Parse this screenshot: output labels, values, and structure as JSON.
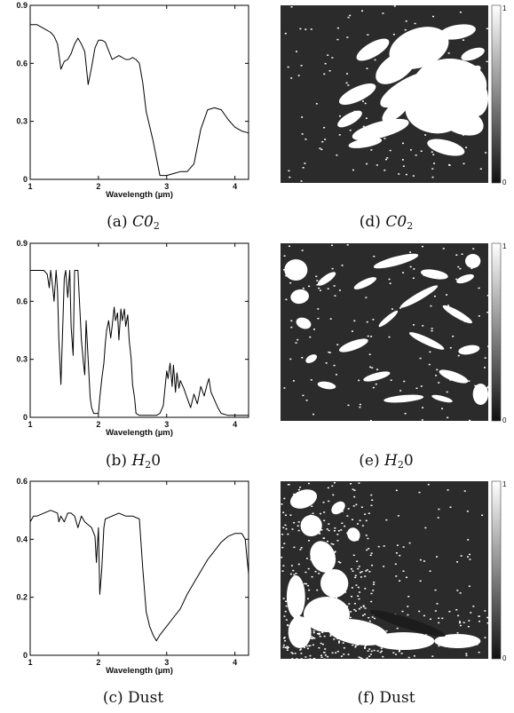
{
  "captions": [
    {
      "id": "a",
      "prefix": "(a) ",
      "symbol": "C0",
      "sub": "2",
      "text": ""
    },
    {
      "id": "b",
      "prefix": "(b) ",
      "symbol": "H",
      "sub": "2",
      "text": "0"
    },
    {
      "id": "c",
      "prefix": "(c) ",
      "symbol": "",
      "sub": "",
      "text": "Dust"
    },
    {
      "id": "d",
      "prefix": "(d) ",
      "symbol": "C0",
      "sub": "2",
      "text": ""
    },
    {
      "id": "e",
      "prefix": "(e) ",
      "symbol": "H",
      "sub": "2",
      "text": "0"
    },
    {
      "id": "f",
      "prefix": "(f) ",
      "symbol": "",
      "sub": "",
      "text": "Dust"
    }
  ],
  "chart_data": [
    {
      "id": "spectrum-co2",
      "type": "line",
      "xlabel": "Wavelength (µm)",
      "ylabel": "",
      "xlim": [
        1,
        4.2
      ],
      "ylim": [
        0,
        0.9
      ],
      "xticks": [
        1,
        2,
        3,
        4
      ],
      "yticks": [
        0,
        0.3,
        0.6,
        0.9
      ],
      "series": [
        {
          "x": [
            1.0,
            1.1,
            1.2,
            1.3,
            1.35,
            1.4,
            1.45,
            1.5,
            1.55,
            1.6,
            1.65,
            1.7,
            1.75,
            1.8,
            1.85,
            1.9,
            1.95,
            2.0,
            2.05,
            2.1,
            2.2,
            2.3,
            2.4,
            2.45,
            2.5,
            2.55,
            2.6,
            2.65,
            2.7,
            2.8,
            2.9,
            3.0,
            3.1,
            3.2,
            3.3,
            3.4,
            3.5,
            3.6,
            3.7,
            3.8,
            3.9,
            4.0,
            4.1,
            4.2
          ],
          "y": [
            0.8,
            0.8,
            0.78,
            0.76,
            0.74,
            0.7,
            0.57,
            0.61,
            0.62,
            0.65,
            0.7,
            0.73,
            0.7,
            0.66,
            0.49,
            0.58,
            0.68,
            0.72,
            0.72,
            0.71,
            0.62,
            0.64,
            0.62,
            0.62,
            0.63,
            0.62,
            0.6,
            0.5,
            0.35,
            0.2,
            0.02,
            0.02,
            0.03,
            0.04,
            0.04,
            0.08,
            0.26,
            0.36,
            0.37,
            0.36,
            0.31,
            0.27,
            0.25,
            0.24
          ]
        }
      ]
    },
    {
      "id": "spectrum-h2o",
      "type": "line",
      "xlabel": "Wavelength (µm)",
      "ylabel": "",
      "xlim": [
        1,
        4.2
      ],
      "ylim": [
        0,
        0.9
      ],
      "xticks": [
        1,
        2,
        3,
        4
      ],
      "yticks": [
        0,
        0.3,
        0.6,
        0.9
      ],
      "series": [
        {
          "x": [
            1.0,
            1.2,
            1.25,
            1.28,
            1.3,
            1.33,
            1.35,
            1.38,
            1.4,
            1.42,
            1.45,
            1.48,
            1.5,
            1.52,
            1.55,
            1.58,
            1.6,
            1.63,
            1.65,
            1.7,
            1.72,
            1.75,
            1.78,
            1.8,
            1.82,
            1.85,
            1.88,
            1.9,
            1.93,
            1.97,
            2.0,
            2.02,
            2.05,
            2.08,
            2.1,
            2.12,
            2.15,
            2.18,
            2.2,
            2.23,
            2.25,
            2.28,
            2.3,
            2.33,
            2.35,
            2.38,
            2.4,
            2.43,
            2.45,
            2.48,
            2.5,
            2.53,
            2.55,
            2.6,
            2.7,
            2.8,
            2.85,
            2.9,
            2.95,
            3.0,
            3.02,
            3.05,
            3.08,
            3.1,
            3.13,
            3.15,
            3.18,
            3.2,
            3.25,
            3.3,
            3.35,
            3.4,
            3.45,
            3.5,
            3.55,
            3.6,
            3.62,
            3.65,
            3.7,
            3.75,
            3.8,
            3.9,
            4.0,
            4.2
          ],
          "y": [
            0.76,
            0.76,
            0.74,
            0.67,
            0.76,
            0.67,
            0.6,
            0.76,
            0.66,
            0.4,
            0.17,
            0.5,
            0.72,
            0.76,
            0.62,
            0.76,
            0.47,
            0.32,
            0.76,
            0.76,
            0.62,
            0.4,
            0.28,
            0.22,
            0.5,
            0.3,
            0.1,
            0.05,
            0.02,
            0.02,
            0.02,
            0.1,
            0.2,
            0.28,
            0.38,
            0.45,
            0.5,
            0.41,
            0.47,
            0.57,
            0.5,
            0.54,
            0.4,
            0.56,
            0.5,
            0.56,
            0.47,
            0.53,
            0.4,
            0.3,
            0.17,
            0.1,
            0.02,
            0.01,
            0.01,
            0.01,
            0.01,
            0.02,
            0.06,
            0.24,
            0.2,
            0.28,
            0.16,
            0.27,
            0.13,
            0.23,
            0.15,
            0.19,
            0.15,
            0.1,
            0.05,
            0.12,
            0.07,
            0.16,
            0.11,
            0.18,
            0.2,
            0.13,
            0.09,
            0.05,
            0.02,
            0.01,
            0.01,
            0.01
          ]
        }
      ]
    },
    {
      "id": "spectrum-dust",
      "type": "line",
      "xlabel": "Wavelength (µm)",
      "ylabel": "",
      "xlim": [
        1,
        4.2
      ],
      "ylim": [
        0,
        0.6
      ],
      "xticks": [
        1,
        2,
        3,
        4
      ],
      "yticks": [
        0,
        0.2,
        0.4,
        0.6
      ],
      "series": [
        {
          "x": [
            1.0,
            1.05,
            1.1,
            1.2,
            1.3,
            1.4,
            1.42,
            1.45,
            1.5,
            1.55,
            1.6,
            1.65,
            1.7,
            1.75,
            1.8,
            1.85,
            1.9,
            1.95,
            1.97,
            2.0,
            2.02,
            2.05,
            2.08,
            2.1,
            2.2,
            2.3,
            2.4,
            2.5,
            2.6,
            2.65,
            2.7,
            2.75,
            2.8,
            2.85,
            2.9,
            3.0,
            3.1,
            3.2,
            3.3,
            3.4,
            3.5,
            3.6,
            3.7,
            3.8,
            3.9,
            4.0,
            4.1,
            4.15,
            4.2
          ],
          "y": [
            0.46,
            0.48,
            0.48,
            0.49,
            0.5,
            0.49,
            0.46,
            0.48,
            0.46,
            0.49,
            0.49,
            0.48,
            0.44,
            0.48,
            0.46,
            0.45,
            0.44,
            0.41,
            0.32,
            0.44,
            0.21,
            0.3,
            0.44,
            0.47,
            0.48,
            0.49,
            0.48,
            0.48,
            0.47,
            0.3,
            0.15,
            0.1,
            0.07,
            0.05,
            0.07,
            0.1,
            0.13,
            0.16,
            0.21,
            0.25,
            0.29,
            0.33,
            0.36,
            0.39,
            0.41,
            0.42,
            0.42,
            0.4,
            0.28
          ]
        }
      ]
    }
  ],
  "maps": [
    {
      "id": "map-co2",
      "cbar_top": "1",
      "cbar_bottom": "0"
    },
    {
      "id": "map-h2o",
      "cbar_top": "1",
      "cbar_bottom": "0"
    },
    {
      "id": "map-dust",
      "cbar_top": "1",
      "cbar_bottom": "0"
    }
  ]
}
